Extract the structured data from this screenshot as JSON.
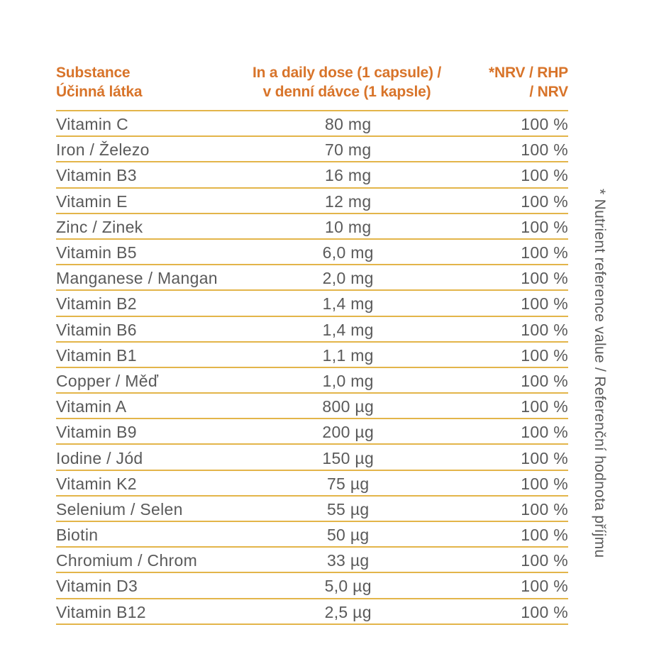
{
  "table": {
    "header": {
      "substance_line1": "Substance",
      "substance_line2": "Účinná látka",
      "dose_line1": "In a daily dose (1 capsule) /",
      "dose_line2": "v denní dávce (1 kapsle)",
      "nrv_line1": "*NRV / RHP",
      "nrv_line2": "/ NRV"
    },
    "rows": [
      {
        "substance": "Vitamin C",
        "dose": "80 mg",
        "nrv": "100 %"
      },
      {
        "substance": "Iron / Železo",
        "dose": "70 mg",
        "nrv": "100 %"
      },
      {
        "substance": "Vitamin B3",
        "dose": "16 mg",
        "nrv": "100 %"
      },
      {
        "substance": "Vitamin E",
        "dose": "12 mg",
        "nrv": "100 %"
      },
      {
        "substance": "Zinc / Zinek",
        "dose": "10 mg",
        "nrv": "100 %"
      },
      {
        "substance": "Vitamin B5",
        "dose": "6,0 mg",
        "nrv": "100 %"
      },
      {
        "substance": "Manganese / Mangan",
        "dose": "2,0 mg",
        "nrv": "100 %"
      },
      {
        "substance": "Vitamin B2",
        "dose": "1,4 mg",
        "nrv": "100 %"
      },
      {
        "substance": "Vitamin B6",
        "dose": "1,4 mg",
        "nrv": "100 %"
      },
      {
        "substance": "Vitamin B1",
        "dose": "1,1 mg",
        "nrv": "100 %"
      },
      {
        "substance": "Copper / Měď",
        "dose": "1,0 mg",
        "nrv": "100 %"
      },
      {
        "substance": "Vitamin A",
        "dose": "800 µg",
        "nrv": "100 %"
      },
      {
        "substance": "Vitamin B9",
        "dose": "200 µg",
        "nrv": "100 %"
      },
      {
        "substance": "Iodine / Jód",
        "dose": "150 µg",
        "nrv": "100 %"
      },
      {
        "substance": "Vitamin K2",
        "dose": "75 µg",
        "nrv": "100 %"
      },
      {
        "substance": "Selenium / Selen",
        "dose": "55 µg",
        "nrv": "100 %"
      },
      {
        "substance": "Biotin",
        "dose": "50 µg",
        "nrv": "100 %"
      },
      {
        "substance": "Chromium / Chrom",
        "dose": "33 µg",
        "nrv": "100 %"
      },
      {
        "substance": "Vitamin D3",
        "dose": "5,0 µg",
        "nrv": "100 %"
      },
      {
        "substance": "Vitamin B12",
        "dose": "2,5 µg",
        "nrv": "100 %"
      }
    ]
  },
  "footnote": "* Nutrient reference value / Referenční hodnota příjmu",
  "colors": {
    "header_text": "#d8742a",
    "rule": "#e3b54a",
    "body_text": "#5a5a5a"
  }
}
